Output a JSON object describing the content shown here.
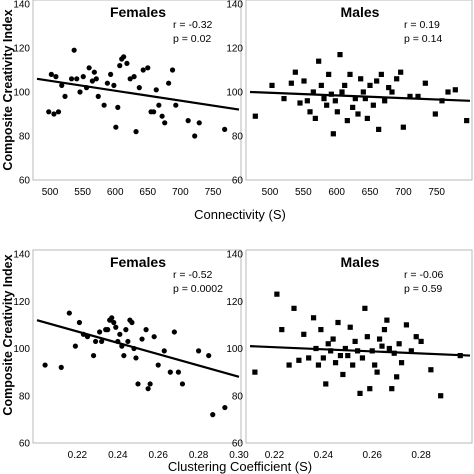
{
  "y_axis_label": "Composite Creativity Index",
  "chart_data": [
    {
      "type": "scatter",
      "title": "Females",
      "stats": {
        "r": "r = -0.32",
        "p": "p = 0.02"
      },
      "xlabel": "Connectivity (S)",
      "ylabel": "Composite Creativity Index",
      "xlim": [
        480,
        790
      ],
      "ylim": [
        60,
        140
      ],
      "xticks": [
        "500",
        "550",
        "600",
        "650",
        "700",
        "750"
      ],
      "yticks": [
        "60",
        "80",
        "100",
        "120",
        "140"
      ],
      "marker": "circle",
      "trend": {
        "x": [
          480,
          790
        ],
        "y": [
          106,
          92
        ]
      },
      "points": [
        [
          498,
          91
        ],
        [
          502,
          108
        ],
        [
          506,
          90
        ],
        [
          509,
          107
        ],
        [
          513,
          91
        ],
        [
          518,
          103
        ],
        [
          523,
          98
        ],
        [
          533,
          106
        ],
        [
          537,
          119
        ],
        [
          541,
          106
        ],
        [
          546,
          100
        ],
        [
          551,
          107
        ],
        [
          556,
          102
        ],
        [
          560,
          111
        ],
        [
          565,
          105
        ],
        [
          568,
          109
        ],
        [
          571,
          106
        ],
        [
          574,
          98
        ],
        [
          583,
          94
        ],
        [
          588,
          104
        ],
        [
          593,
          108
        ],
        [
          598,
          103
        ],
        [
          601,
          84
        ],
        [
          604,
          93
        ],
        [
          607,
          112
        ],
        [
          610,
          115
        ],
        [
          613,
          116
        ],
        [
          618,
          113
        ],
        [
          623,
          106
        ],
        [
          629,
          107
        ],
        [
          632,
          82
        ],
        [
          637,
          102
        ],
        [
          643,
          110
        ],
        [
          650,
          111
        ],
        [
          655,
          91
        ],
        [
          659,
          91
        ],
        [
          663,
          101
        ],
        [
          667,
          94
        ],
        [
          672,
          89
        ],
        [
          676,
          86
        ],
        [
          682,
          104
        ],
        [
          688,
          110
        ],
        [
          693,
          94
        ],
        [
          712,
          87
        ],
        [
          722,
          80
        ],
        [
          729,
          86
        ],
        [
          768,
          83
        ]
      ]
    },
    {
      "type": "scatter",
      "title": "Males",
      "stats": {
        "r": "r = 0.19",
        "p": "p = 0.14"
      },
      "xlabel": "Connectivity (S)",
      "ylabel": "",
      "xlim": [
        470,
        800
      ],
      "ylim": [
        60,
        140
      ],
      "xticks": [
        "500",
        "550",
        "600",
        "650",
        "700",
        "750"
      ],
      "yticks": [
        "60",
        "80",
        "100",
        "120",
        "140"
      ],
      "marker": "square",
      "trend": {
        "x": [
          470,
          800
        ],
        "y": [
          100,
          96
        ]
      },
      "points": [
        [
          478,
          89
        ],
        [
          503,
          103
        ],
        [
          521,
          97
        ],
        [
          532,
          104
        ],
        [
          538,
          109
        ],
        [
          545,
          95
        ],
        [
          551,
          105
        ],
        [
          556,
          96
        ],
        [
          560,
          91
        ],
        [
          565,
          100
        ],
        [
          568,
          88
        ],
        [
          573,
          114
        ],
        [
          577,
          103
        ],
        [
          581,
          97
        ],
        [
          585,
          94
        ],
        [
          588,
          108
        ],
        [
          592,
          99
        ],
        [
          595,
          81
        ],
        [
          598,
          96
        ],
        [
          601,
          91
        ],
        [
          605,
          117
        ],
        [
          608,
          100
        ],
        [
          612,
          103
        ],
        [
          616,
          87
        ],
        [
          620,
          108
        ],
        [
          624,
          93
        ],
        [
          628,
          97
        ],
        [
          632,
          90
        ],
        [
          636,
          106
        ],
        [
          640,
          100
        ],
        [
          643,
          97
        ],
        [
          646,
          88
        ],
        [
          650,
          103
        ],
        [
          655,
          94
        ],
        [
          660,
          105
        ],
        [
          663,
          83
        ],
        [
          667,
          108
        ],
        [
          672,
          96
        ],
        [
          678,
          102
        ],
        [
          683,
          100
        ],
        [
          690,
          106
        ],
        [
          696,
          109
        ],
        [
          700,
          84
        ],
        [
          710,
          98
        ],
        [
          722,
          98
        ],
        [
          733,
          104
        ],
        [
          748,
          90
        ],
        [
          758,
          96
        ],
        [
          767,
          100
        ],
        [
          778,
          101
        ],
        [
          795,
          87
        ]
      ]
    },
    {
      "type": "scatter",
      "title": "Females",
      "stats": {
        "r": "r = -0.52",
        "p": "p = 0.0002"
      },
      "xlabel": "Clustering Coefficient (S)",
      "ylabel": "Composite Creativity Index",
      "xlim": [
        0.2,
        0.3
      ],
      "ylim": [
        60,
        140
      ],
      "xticks": [
        "0.22",
        "0.24",
        "0.26",
        "0.28",
        "0.30"
      ],
      "yticks": [
        "60",
        "80",
        "100",
        "120",
        "140"
      ],
      "marker": "circle",
      "trend": {
        "x": [
          0.2,
          0.3
        ],
        "y": [
          112,
          88
        ]
      },
      "points": [
        [
          0.204,
          93
        ],
        [
          0.212,
          92
        ],
        [
          0.216,
          115
        ],
        [
          0.219,
          101
        ],
        [
          0.221,
          111
        ],
        [
          0.223,
          106
        ],
        [
          0.225,
          105
        ],
        [
          0.228,
          97
        ],
        [
          0.229,
          103
        ],
        [
          0.231,
          107
        ],
        [
          0.232,
          103
        ],
        [
          0.234,
          108
        ],
        [
          0.235,
          108
        ],
        [
          0.236,
          112
        ],
        [
          0.237,
          113
        ],
        [
          0.238,
          111
        ],
        [
          0.239,
          109
        ],
        [
          0.24,
          103
        ],
        [
          0.241,
          106
        ],
        [
          0.242,
          101
        ],
        [
          0.243,
          97
        ],
        [
          0.244,
          108
        ],
        [
          0.245,
          103
        ],
        [
          0.246,
          112
        ],
        [
          0.247,
          111
        ],
        [
          0.248,
          100
        ],
        [
          0.249,
          96
        ],
        [
          0.25,
          85
        ],
        [
          0.252,
          104
        ],
        [
          0.254,
          108
        ],
        [
          0.255,
          83
        ],
        [
          0.256,
          85
        ],
        [
          0.258,
          105
        ],
        [
          0.26,
          93
        ],
        [
          0.263,
          99
        ],
        [
          0.266,
          90
        ],
        [
          0.268,
          107
        ],
        [
          0.27,
          90
        ],
        [
          0.272,
          85
        ],
        [
          0.28,
          99
        ],
        [
          0.285,
          97
        ],
        [
          0.287,
          72
        ],
        [
          0.293,
          75
        ]
      ]
    },
    {
      "type": "scatter",
      "title": "Males",
      "stats": {
        "r": "r = -0.06",
        "p": "p = 0.59"
      },
      "xlabel": "Clustering Coefficient (S)",
      "ylabel": "",
      "xlim": [
        0.21,
        0.3
      ],
      "ylim": [
        60,
        140
      ],
      "xticks": [
        "0.22",
        "0.24",
        "0.26",
        "0.28"
      ],
      "yticks": [
        "60",
        "80",
        "100",
        "120",
        "140"
      ],
      "marker": "square",
      "trend": {
        "x": [
          0.21,
          0.3
        ],
        "y": [
          101,
          97
        ]
      },
      "points": [
        [
          0.212,
          90
        ],
        [
          0.221,
          123
        ],
        [
          0.223,
          108
        ],
        [
          0.226,
          93
        ],
        [
          0.228,
          117
        ],
        [
          0.23,
          95
        ],
        [
          0.232,
          106
        ],
        [
          0.234,
          96
        ],
        [
          0.236,
          113
        ],
        [
          0.237,
          100
        ],
        [
          0.238,
          93
        ],
        [
          0.239,
          108
        ],
        [
          0.24,
          96
        ],
        [
          0.241,
          85
        ],
        [
          0.242,
          102
        ],
        [
          0.243,
          99
        ],
        [
          0.244,
          104
        ],
        [
          0.245,
          94
        ],
        [
          0.246,
          111
        ],
        [
          0.247,
          97
        ],
        [
          0.248,
          89
        ],
        [
          0.249,
          100
        ],
        [
          0.25,
          97
        ],
        [
          0.251,
          109
        ],
        [
          0.252,
          93
        ],
        [
          0.253,
          103
        ],
        [
          0.254,
          99
        ],
        [
          0.255,
          81
        ],
        [
          0.256,
          96
        ],
        [
          0.257,
          117
        ],
        [
          0.258,
          105
        ],
        [
          0.259,
          83
        ],
        [
          0.26,
          99
        ],
        [
          0.261,
          93
        ],
        [
          0.262,
          90
        ],
        [
          0.263,
          104
        ],
        [
          0.264,
          101
        ],
        [
          0.265,
          108
        ],
        [
          0.266,
          112
        ],
        [
          0.267,
          100
        ],
        [
          0.268,
          83
        ],
        [
          0.269,
          98
        ],
        [
          0.27,
          88
        ],
        [
          0.271,
          102
        ],
        [
          0.272,
          94
        ],
        [
          0.274,
          110
        ],
        [
          0.276,
          99
        ],
        [
          0.278,
          105
        ],
        [
          0.28,
          103
        ],
        [
          0.284,
          91
        ],
        [
          0.288,
          80
        ],
        [
          0.296,
          97
        ]
      ]
    }
  ]
}
